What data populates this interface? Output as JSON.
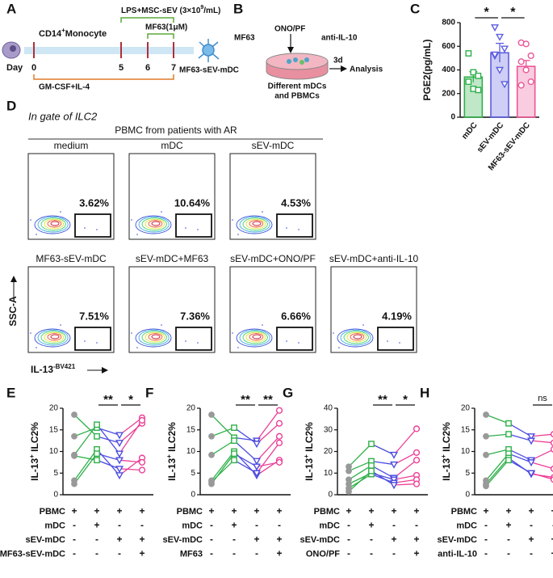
{
  "panel_labels": [
    "A",
    "B",
    "C",
    "D",
    "E",
    "F",
    "G",
    "H"
  ],
  "panel_a": {
    "cell_label": {
      "main": "CD14",
      "sup": "+",
      "rest": "Monocyte"
    },
    "day": "Day",
    "day_ticks": [
      "0",
      "5",
      "6",
      "7"
    ],
    "lps": {
      "main": "LPS+MSC-sEV (3×10",
      "sup": "9",
      "rest": "/mL)"
    },
    "mf63": "MF63(1μM)",
    "product": "MF63-sEV-mDC",
    "culture": "GM-CSF+IL-4"
  },
  "panel_b": {
    "agents": [
      "MF63",
      "ONO/PF",
      "anti-IL-10"
    ],
    "duration": "3d",
    "result": "Analysis",
    "dish_label": [
      "Different mDCs",
      "and PBMCs"
    ]
  },
  "panel_d": {
    "gate": "In gate of ILC2",
    "group": "PBMC from patients with AR",
    "plots": [
      {
        "label": "medium",
        "percent": "3.62%"
      },
      {
        "label": "mDC",
        "percent": "10.64%"
      },
      {
        "label": "sEV-mDC",
        "percent": "4.53%"
      },
      {
        "label": "MF63-sEV-mDC",
        "percent": "7.51%"
      },
      {
        "label": "sEV-mDC+MF63",
        "percent": "7.36%"
      },
      {
        "label": "sEV-mDC+ONO/PF",
        "percent": "6.66%"
      },
      {
        "label": "sEV-mDC+anti-IL-10",
        "percent": "4.19%"
      }
    ],
    "y_axis": "SSC-A",
    "x_axis": {
      "main": "IL-13",
      "sup": "-BV421"
    }
  },
  "chart_data": [
    {
      "type": "bar",
      "y_label": "PGE2(pg/mL)",
      "categories": [
        "mDC",
        "sEV-mDC",
        "MF63-sEV-mDC"
      ],
      "values": [
        340,
        545,
        430
      ],
      "errors": [
        45,
        80,
        50
      ],
      "colors": [
        "#2fb04a",
        "#5d5de0",
        "#ec5597"
      ],
      "points": [
        [
          540,
          380,
          350,
          300,
          240,
          230
        ],
        [
          760,
          680,
          580,
          520,
          400,
          280,
          530
        ],
        [
          630,
          620,
          520,
          470,
          400,
          300,
          270
        ]
      ],
      "ylim": [
        0,
        800
      ],
      "yticks": [
        0,
        200,
        400,
        600,
        800
      ],
      "significance": [
        "*",
        "*"
      ]
    },
    {
      "type": "paired",
      "y_label": {
        "main": "IL-13",
        "sup": "+",
        "rest": " ILC2%"
      },
      "colors": [
        "#999999",
        "#2fb04a",
        "#4d4de0",
        "#ec3f97"
      ],
      "ylim": [
        0,
        20
      ],
      "yticks": [
        0,
        5,
        10,
        15,
        20
      ],
      "series": [
        {
          "values": [
            18.5,
            13.5,
            12.0,
            16.5
          ]
        },
        {
          "values": [
            13.5,
            15.5,
            13.8,
            17.8
          ]
        },
        {
          "values": [
            9.2,
            16.2,
            9.5,
            17.2
          ]
        },
        {
          "values": [
            3.3,
            10.5,
            4.5,
            8.5
          ]
        },
        {
          "values": [
            2.5,
            9.5,
            8.0,
            7.5
          ]
        },
        {
          "values": [
            9.0,
            8.0,
            6.0,
            5.7
          ]
        }
      ],
      "significance": [
        null,
        "**",
        "*"
      ],
      "table": [
        {
          "label": "PBMC",
          "signs": [
            "+",
            "+",
            "+",
            "+"
          ]
        },
        {
          "label": "mDC",
          "signs": [
            "-",
            "+",
            "-",
            "-"
          ]
        },
        {
          "label": "sEV-mDC",
          "signs": [
            "-",
            "-",
            "+",
            "+"
          ]
        },
        {
          "label": "MF63-sEV-mDC",
          "signs": [
            "-",
            "-",
            "-",
            "+"
          ]
        }
      ]
    },
    {
      "type": "paired",
      "y_label": {
        "main": "IL-13",
        "sup": "+",
        "rest": " ILC2%"
      },
      "colors": [
        "#999999",
        "#2fb04a",
        "#4d4de0",
        "#ec3f97"
      ],
      "ylim": [
        0,
        20
      ],
      "yticks": [
        0,
        5,
        10,
        15,
        20
      ],
      "series": [
        {
          "values": [
            18.5,
            13.2,
            12.5,
            19.5
          ]
        },
        {
          "values": [
            13.5,
            15.5,
            11.8,
            16.5
          ]
        },
        {
          "values": [
            9.2,
            12.5,
            7.8,
            13.5
          ]
        },
        {
          "values": [
            3.3,
            10.0,
            4.5,
            8.0
          ]
        },
        {
          "values": [
            2.5,
            9.5,
            6.5,
            7.5
          ]
        },
        {
          "values": [
            3.0,
            8.0,
            5.0,
            12.0
          ]
        }
      ],
      "significance": [
        null,
        "**",
        "**"
      ],
      "table": [
        {
          "label": "PBMC",
          "signs": [
            "+",
            "+",
            "+",
            "+"
          ]
        },
        {
          "label": "mDC",
          "signs": [
            "-",
            "+",
            "-",
            "-"
          ]
        },
        {
          "label": "sEV-mDC",
          "signs": [
            "-",
            "-",
            "+",
            "+"
          ]
        },
        {
          "label": "MF63",
          "signs": [
            "-",
            "-",
            "-",
            "+"
          ]
        }
      ]
    },
    {
      "type": "paired",
      "y_label": {
        "main": "IL-13",
        "sup": "+",
        "rest": " ILC2%"
      },
      "colors": [
        "#999999",
        "#2fb04a",
        "#4d4de0",
        "#ec3f97"
      ],
      "ylim": [
        0,
        40
      ],
      "yticks": [
        0,
        10,
        20,
        30,
        40
      ],
      "series": [
        {
          "values": [
            13,
            23.5,
            18.5,
            30.5
          ]
        },
        {
          "values": [
            11,
            15.5,
            14,
            19.5
          ]
        },
        {
          "values": [
            7,
            13.5,
            7.8,
            16
          ]
        },
        {
          "values": [
            5,
            10,
            7,
            9
          ]
        },
        {
          "values": [
            3,
            9.5,
            5.5,
            7
          ]
        },
        {
          "values": [
            1.5,
            11,
            4.5,
            5
          ]
        }
      ],
      "significance": [
        null,
        "**",
        "*"
      ],
      "table": [
        {
          "label": "PBMC",
          "signs": [
            "+",
            "+",
            "+",
            "+"
          ]
        },
        {
          "label": "mDC",
          "signs": [
            "-",
            "+",
            "-",
            "-"
          ]
        },
        {
          "label": "sEV-mDC",
          "signs": [
            "-",
            "-",
            "+",
            "+"
          ]
        },
        {
          "label": "ONO/PF",
          "signs": [
            "-",
            "-",
            "-",
            "+"
          ]
        }
      ]
    },
    {
      "type": "paired",
      "y_label": {
        "main": "IL-13",
        "sup": "+",
        "rest": " ILC2%"
      },
      "colors": [
        "#999999",
        "#2fb04a",
        "#4d4de0",
        "#ec3f97"
      ],
      "ylim": [
        0,
        20
      ],
      "yticks": [
        0,
        5,
        10,
        15,
        20
      ],
      "series": [
        {
          "values": [
            18.5,
            16.5,
            13.5,
            14
          ]
        },
        {
          "values": [
            13.5,
            14,
            12.5,
            12
          ]
        },
        {
          "values": [
            9.2,
            10.5,
            8,
            10.5
          ]
        },
        {
          "values": [
            3.3,
            9.5,
            7.5,
            6
          ]
        },
        {
          "values": [
            2.5,
            8.5,
            4.8,
            4
          ]
        },
        {
          "values": [
            2,
            8,
            5,
            3.5
          ]
        }
      ],
      "significance": [
        null,
        null,
        "ns"
      ],
      "table": [
        {
          "label": "PBMC",
          "signs": [
            "+",
            "+",
            "+",
            "+"
          ]
        },
        {
          "label": "mDC",
          "signs": [
            "-",
            "+",
            "-",
            "-"
          ]
        },
        {
          "label": "sEV-mDC",
          "signs": [
            "-",
            "-",
            "+",
            "+"
          ]
        },
        {
          "label": "anti-IL-10",
          "signs": [
            "-",
            "-",
            "-",
            "+"
          ]
        }
      ]
    }
  ]
}
